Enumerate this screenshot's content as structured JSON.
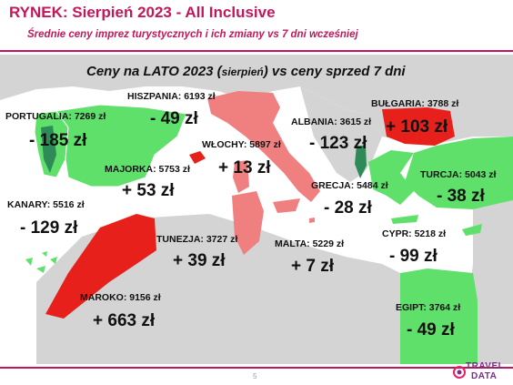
{
  "header": {
    "title": "RYNEK: Sierpień 2023 - All Inclusive",
    "subtitle": "Średnie ceny imprez turystycznych i ich zmiany vs 7 dni wcześniej"
  },
  "map": {
    "heading_main": "Ceny na LATO 2023 (",
    "heading_small": "sierpień",
    "heading_end": ") vs ceny sprzed 7 dni",
    "colors": {
      "increase": "#e8201c",
      "decrease": "#5ee06a",
      "italy": "#f08080",
      "land": "#d4d4d4",
      "sea": "#ffffff"
    },
    "destinations": [
      {
        "id": "hiszpania",
        "label": "HISZPANIA: 6193 zł",
        "change": "- 49 zł",
        "price": 6193,
        "change_value": -49
      },
      {
        "id": "portugalia",
        "label": "PORTUGALIA: 7269 zł",
        "change": "- 185 zł",
        "price": 7269,
        "change_value": -185
      },
      {
        "id": "wlochy",
        "label": "WŁOCHY: 5897 zł",
        "change": "+ 13 zł",
        "price": 5897,
        "change_value": 13
      },
      {
        "id": "albania",
        "label": "ALBANIA: 3615 zł",
        "change": "- 123 zł",
        "price": 3615,
        "change_value": -123
      },
      {
        "id": "bulgaria",
        "label": "BUŁGARIA: 3788 zł",
        "change": "+ 103 zł",
        "price": 3788,
        "change_value": 103
      },
      {
        "id": "majorka",
        "label": "MAJORKA: 5753 zł",
        "change": "+ 53 zł",
        "price": 5753,
        "change_value": 53
      },
      {
        "id": "turcja",
        "label": "TURCJA: 5043 zł",
        "change": "- 38 zł",
        "price": 5043,
        "change_value": -38
      },
      {
        "id": "grecja",
        "label": "GRECJA: 5484 zł",
        "change": "- 28 zł",
        "price": 5484,
        "change_value": -28
      },
      {
        "id": "kanary",
        "label": "KANARY: 5516 zł",
        "change": "- 129 zł",
        "price": 5516,
        "change_value": -129
      },
      {
        "id": "tunezja",
        "label": "TUNEZJA: 3727 zł",
        "change": "+ 39 zł",
        "price": 3727,
        "change_value": 39
      },
      {
        "id": "malta",
        "label": "MALTA: 5229 zł",
        "change": "+ 7 zł",
        "price": 5229,
        "change_value": 7
      },
      {
        "id": "cypr",
        "label": "CYPR: 5218 zł",
        "change": "- 99 zł",
        "price": 5218,
        "change_value": -99
      },
      {
        "id": "maroko",
        "label": "MAROKO: 9156 zł",
        "change": "+ 663 zł",
        "price": 9156,
        "change_value": 663
      },
      {
        "id": "egipt",
        "label": "EGIPT: 3764 zł",
        "change": "- 49 zł",
        "price": 3764,
        "change_value": -49
      }
    ]
  },
  "footer": {
    "page_number": "5",
    "logo_line1": "TRAVEL",
    "logo_line2": "DATA"
  }
}
